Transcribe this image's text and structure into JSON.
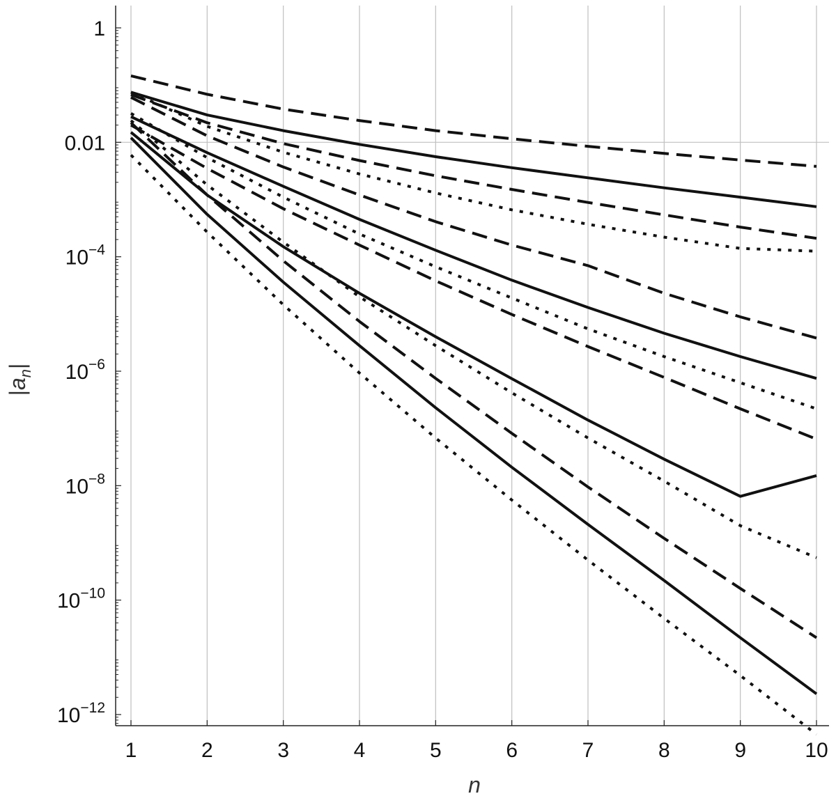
{
  "chart_data": {
    "type": "line",
    "title": "",
    "xlabel": "n",
    "ylabel": "|a_n|",
    "ylabel_parts": {
      "left_bar": "|",
      "var": "a",
      "sub": "n",
      "right_bar": "|"
    },
    "x_scale": "linear",
    "y_scale": "log",
    "xlim": [
      1,
      10
    ],
    "ylim": [
      3e-13,
      2.0
    ],
    "grid": {
      "vertical": true,
      "horizontal_at": [
        0.01
      ]
    },
    "legend": "none",
    "line_color": "#111111",
    "grid_color": "#bfbfbf",
    "x_ticks": [
      {
        "value": 1,
        "label": "1"
      },
      {
        "value": 2,
        "label": "2"
      },
      {
        "value": 3,
        "label": "3"
      },
      {
        "value": 4,
        "label": "4"
      },
      {
        "value": 5,
        "label": "5"
      },
      {
        "value": 6,
        "label": "6"
      },
      {
        "value": 7,
        "label": "7"
      },
      {
        "value": 8,
        "label": "8"
      },
      {
        "value": 9,
        "label": "9"
      },
      {
        "value": 10,
        "label": "10"
      }
    ],
    "y_ticks": [
      {
        "value": 1,
        "base": "1",
        "exp": ""
      },
      {
        "value": 0.01,
        "base": "0.01",
        "exp": ""
      },
      {
        "value": 0.0001,
        "base": "10",
        "exp": "−4"
      },
      {
        "value": 1e-06,
        "base": "10",
        "exp": "−6"
      },
      {
        "value": 1e-08,
        "base": "10",
        "exp": "−8"
      },
      {
        "value": 1e-10,
        "base": "10",
        "exp": "−10"
      },
      {
        "value": 1e-12,
        "base": "10",
        "exp": "−12"
      }
    ],
    "x": [
      1,
      2,
      3,
      4,
      5,
      6,
      7,
      8,
      9,
      10
    ],
    "series": [
      {
        "style": "dashed",
        "values": [
          0.145,
          0.069,
          0.038,
          0.024,
          0.016,
          0.0115,
          0.0085,
          0.0064,
          0.0049,
          0.0038
        ]
      },
      {
        "style": "solid",
        "values": [
          0.075,
          0.03,
          0.016,
          0.0092,
          0.0056,
          0.0036,
          0.0024,
          0.0016,
          0.0011,
          0.00075
        ]
      },
      {
        "style": "dashed",
        "values": [
          0.068,
          0.022,
          0.0095,
          0.0048,
          0.0026,
          0.0015,
          0.00089,
          0.00054,
          0.00033,
          0.00021
        ]
      },
      {
        "style": "dotted",
        "values": [
          0.075,
          0.019,
          0.0067,
          0.0028,
          0.0013,
          0.00066,
          0.00037,
          0.00022,
          0.00014,
          0.000125
        ]
      },
      {
        "style": "dashed",
        "values": [
          0.061,
          0.013,
          0.0037,
          0.0012,
          0.00041,
          0.00016,
          7e-05,
          2.3e-05,
          8.9e-06,
          3.8e-06
        ]
      },
      {
        "style": "solid",
        "values": [
          0.028,
          0.0066,
          0.0017,
          0.00045,
          0.00013,
          3.9e-05,
          1.3e-05,
          4.6e-06,
          1.8e-06,
          7.5e-07
        ]
      },
      {
        "style": "dotted",
        "values": [
          0.032,
          0.0054,
          0.0011,
          0.00025,
          6.7e-05,
          1.9e-05,
          5.5e-06,
          1.8e-06,
          6.3e-07,
          2.2e-07
        ]
      },
      {
        "style": "dashed",
        "values": [
          0.02,
          0.0035,
          0.00069,
          0.00016,
          3.8e-05,
          9.8e-06,
          2.7e-06,
          7.8e-07,
          2.2e-07,
          6.5e-08
        ]
      },
      {
        "style": "solid",
        "values": [
          0.015,
          0.0012,
          0.00015,
          2.3e-05,
          4e-06,
          7.4e-07,
          1.4e-07,
          2.9e-08,
          6.5e-09,
          1.5e-08
        ]
      },
      {
        "style": "dotted",
        "values": [
          0.024,
          0.0018,
          0.00018,
          2e-05,
          2.8e-06,
          4.2e-07,
          6.8e-08,
          1.2e-08,
          2e-09,
          5.5e-10
        ]
      },
      {
        "style": "dashed",
        "values": [
          0.022,
          0.0012,
          8.5e-05,
          7.4e-06,
          7.5e-07,
          8.2e-08,
          9.5e-09,
          1.2e-09,
          1.6e-10,
          2.2e-11
        ]
      },
      {
        "style": "solid",
        "values": [
          0.012,
          0.00055,
          3.6e-05,
          2.8e-06,
          2.3e-07,
          2.1e-08,
          2.1e-09,
          2.2e-10,
          2.2e-11,
          2.3e-12
        ]
      },
      {
        "style": "dotted",
        "values": [
          0.006,
          0.00027,
          1.45e-05,
          9.3e-07,
          6.8e-08,
          5.6e-09,
          5e-10,
          4.8e-11,
          4.8e-12,
          4.5e-13
        ]
      }
    ]
  }
}
